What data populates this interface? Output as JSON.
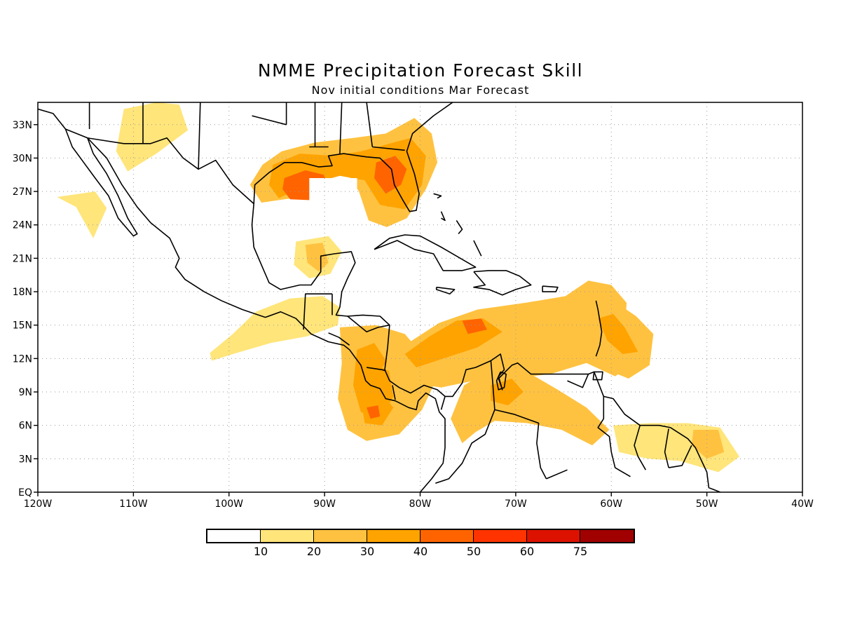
{
  "title": "NMME Precipitation Forecast Skill",
  "subtitle": "Nov initial conditions  Mar Forecast",
  "map": {
    "lon_range": [
      -120,
      -40
    ],
    "lat_range": [
      0,
      35
    ],
    "lon_ticks": [
      "120W",
      "110W",
      "100W",
      "90W",
      "80W",
      "70W",
      "60W",
      "50W",
      "40W"
    ],
    "lat_ticks": [
      "EQ",
      "3N",
      "6N",
      "9N",
      "12N",
      "15N",
      "18N",
      "21N",
      "24N",
      "27N",
      "30N",
      "33N"
    ],
    "grid": "dotted"
  },
  "legend": {
    "levels": [
      "10",
      "20",
      "30",
      "40",
      "50",
      "60",
      "75"
    ],
    "colors": [
      "#ffffff",
      "#ffe57a",
      "#ffc240",
      "#ffa300",
      "#ff6400",
      "#ff3300",
      "#dd1100",
      "#a00000"
    ]
  },
  "skill_regions": [
    {
      "name": "southwest-us",
      "level": 1
    },
    {
      "name": "northern-gulf-coast",
      "level": 2
    },
    {
      "name": "northern-gulf-coast",
      "level": 3
    },
    {
      "name": "florida",
      "level": 3
    },
    {
      "name": "florida",
      "level": 4
    },
    {
      "name": "western-gulf",
      "level": 4
    },
    {
      "name": "southern-gulf",
      "level": 1
    },
    {
      "name": "yucatan",
      "level": 2
    },
    {
      "name": "eastern-pacific",
      "level": 1
    },
    {
      "name": "central-america",
      "level": 2
    },
    {
      "name": "central-america",
      "level": 3
    },
    {
      "name": "panama-pacific",
      "level": 3
    },
    {
      "name": "panama-pacific",
      "level": 4
    },
    {
      "name": "caribbean",
      "level": 2
    },
    {
      "name": "caribbean",
      "level": 3
    },
    {
      "name": "caribbean",
      "level": 4
    },
    {
      "name": "venezuela",
      "level": 2
    },
    {
      "name": "venezuela",
      "level": 3
    },
    {
      "name": "lesser-antilles",
      "level": 2
    },
    {
      "name": "lesser-antilles",
      "level": 3
    },
    {
      "name": "guianas",
      "level": 1
    },
    {
      "name": "guianas",
      "level": 2
    },
    {
      "name": "baja-pacific",
      "level": 1
    }
  ]
}
